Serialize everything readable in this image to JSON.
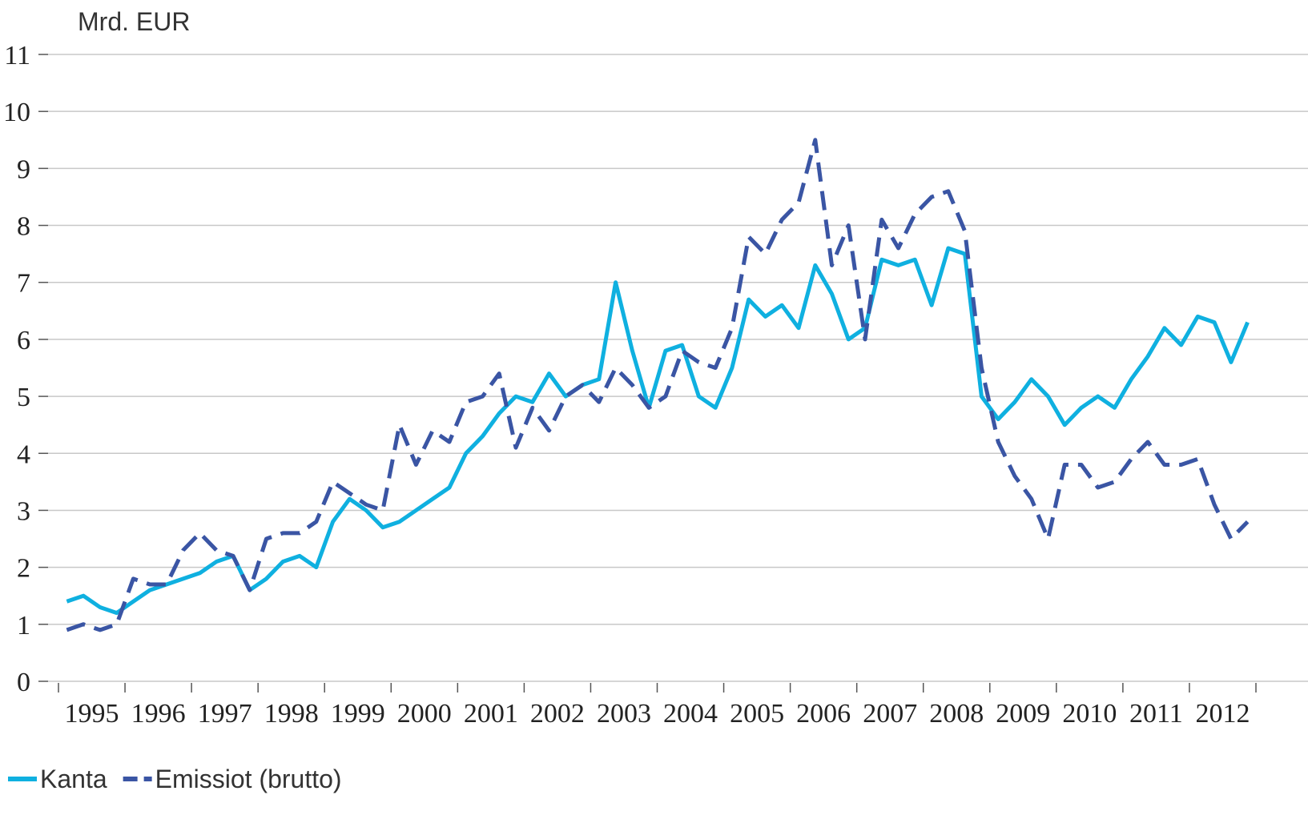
{
  "chart_data": {
    "type": "line",
    "y_unit_label": "Mrd. EUR",
    "categories": [
      null,
      "1995",
      null,
      null,
      null,
      "1996",
      null,
      null,
      null,
      "1997",
      null,
      null,
      null,
      "1998",
      null,
      null,
      null,
      "1999",
      null,
      null,
      null,
      "2000",
      null,
      null,
      null,
      "2001",
      null,
      null,
      null,
      "2002",
      null,
      null,
      null,
      "2003",
      null,
      null,
      null,
      "2004",
      null,
      null,
      null,
      "2005",
      null,
      null,
      null,
      "2006",
      null,
      null,
      null,
      "2007",
      null,
      null,
      null,
      "2008",
      null,
      null,
      null,
      "2009",
      null,
      null,
      null,
      "2010",
      null,
      null,
      null,
      "2011",
      null,
      null,
      null,
      "2012",
      null,
      null
    ],
    "series": [
      {
        "name": "Kanta",
        "color": "#0fb0e0",
        "dashed": false,
        "values": [
          1.4,
          1.5,
          1.3,
          1.2,
          1.4,
          1.6,
          1.7,
          1.8,
          1.9,
          2.1,
          2.2,
          1.6,
          1.8,
          2.1,
          2.2,
          2.0,
          2.8,
          3.2,
          3.0,
          2.7,
          2.8,
          3.0,
          3.2,
          3.4,
          4.0,
          4.3,
          4.7,
          5.0,
          4.9,
          5.4,
          5.0,
          5.2,
          5.3,
          7.0,
          5.8,
          4.8,
          5.8,
          5.9,
          5.0,
          4.8,
          5.5,
          6.7,
          6.4,
          6.6,
          6.2,
          7.3,
          6.8,
          6.0,
          6.2,
          7.4,
          7.3,
          7.4,
          6.6,
          7.6,
          7.5,
          5.0,
          4.6,
          4.9,
          5.3,
          5.0,
          4.5,
          4.8,
          5.0,
          4.8,
          5.3,
          5.7,
          6.2,
          5.9,
          6.4,
          6.3,
          5.6,
          6.3
        ]
      },
      {
        "name": "Emissiot (brutto)",
        "color": "#3a55a4",
        "dashed": true,
        "values": [
          0.9,
          1.0,
          0.9,
          1.0,
          1.8,
          1.7,
          1.7,
          2.3,
          2.6,
          2.3,
          2.2,
          1.6,
          2.5,
          2.6,
          2.6,
          2.8,
          3.5,
          3.3,
          3.1,
          3.0,
          4.5,
          3.8,
          4.4,
          4.2,
          4.9,
          5.0,
          5.4,
          4.1,
          4.8,
          4.4,
          5.0,
          5.2,
          4.9,
          5.5,
          5.2,
          4.8,
          5.0,
          5.8,
          5.6,
          5.5,
          6.2,
          7.8,
          7.5,
          8.1,
          8.4,
          9.5,
          7.3,
          8.0,
          6.0,
          8.1,
          7.6,
          8.2,
          8.5,
          8.6,
          7.9,
          5.5,
          4.2,
          3.6,
          3.2,
          2.5,
          3.8,
          3.8,
          3.4,
          3.5,
          3.9,
          4.2,
          3.8,
          3.8,
          3.9,
          3.1,
          2.5,
          2.8
        ]
      }
    ],
    "ylim": [
      0,
      11
    ],
    "yticks": [
      0,
      1,
      2,
      3,
      4,
      5,
      6,
      7,
      8,
      9,
      10,
      11
    ],
    "grid": true,
    "legend": "bottom-left"
  }
}
